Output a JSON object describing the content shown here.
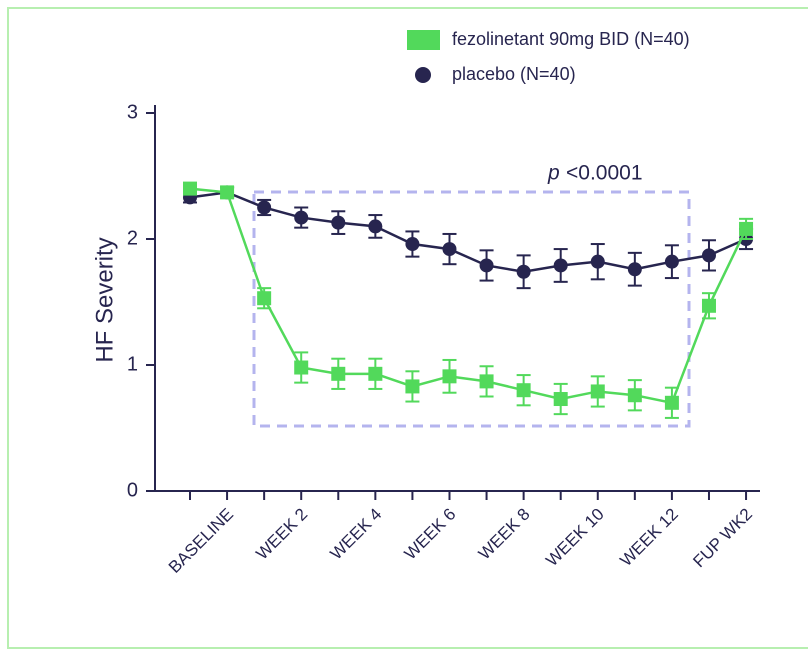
{
  "chart_data": {
    "type": "line",
    "ylabel": "HF Severity",
    "categories": [
      null,
      "BASELINE",
      null,
      "WEEK 2",
      null,
      "WEEK 4",
      null,
      "WEEK 6",
      null,
      "WEEK 8",
      null,
      "WEEK 10",
      null,
      "WEEK 12",
      null,
      "FUP WK2"
    ],
    "series": [
      {
        "name": "placebo (N=40)",
        "color": "#27254f",
        "marker": "circle",
        "values": [
          2.33,
          2.37,
          2.25,
          2.17,
          2.13,
          2.1,
          1.96,
          1.92,
          1.79,
          1.74,
          1.79,
          1.82,
          1.76,
          1.82,
          1.87,
          2.0
        ],
        "errors": [
          0.04,
          0.04,
          0.06,
          0.08,
          0.09,
          0.09,
          0.1,
          0.12,
          0.12,
          0.13,
          0.13,
          0.14,
          0.13,
          0.13,
          0.12,
          0.08
        ]
      },
      {
        "name": "fezolinetant 90mg BID (N=40)",
        "color": "#52d95b",
        "marker": "square",
        "values": [
          2.4,
          2.37,
          1.53,
          0.98,
          0.93,
          0.93,
          0.83,
          0.91,
          0.87,
          0.8,
          0.73,
          0.79,
          0.76,
          0.7,
          1.47,
          2.08
        ],
        "errors": [
          0.04,
          0.04,
          0.08,
          0.12,
          0.12,
          0.12,
          0.12,
          0.13,
          0.12,
          0.12,
          0.12,
          0.12,
          0.12,
          0.12,
          0.1,
          0.08
        ]
      }
    ],
    "ylim": [
      0,
      3
    ],
    "yticks": [
      0,
      1,
      2,
      3
    ],
    "annotation": {
      "italic": "p",
      "text": "<0.0001"
    }
  }
}
